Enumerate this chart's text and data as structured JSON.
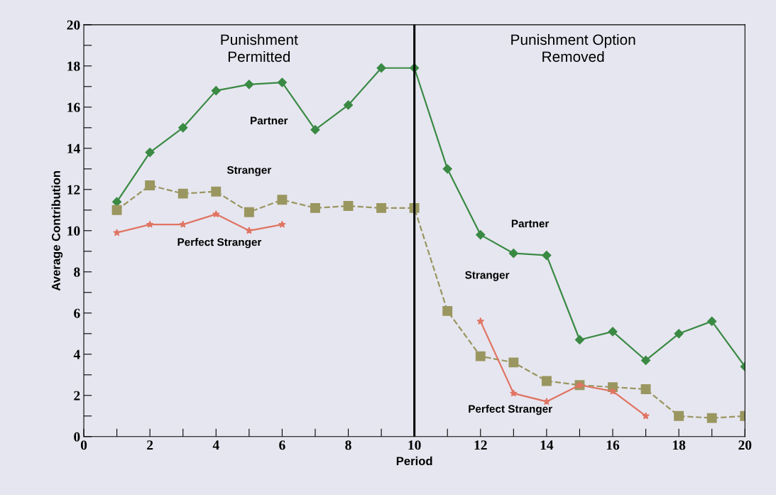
{
  "chart_data": {
    "type": "line",
    "xlabel": "Period",
    "ylabel": "Average Contribution",
    "xlim": [
      0,
      20
    ],
    "ylim": [
      0,
      20
    ],
    "xticks": [
      0,
      {
        "value": 1,
        "label": null
      },
      2,
      {
        "value": 3,
        "label": null
      },
      4,
      {
        "value": 5,
        "label": null
      },
      6,
      {
        "value": 7,
        "label": null
      },
      8,
      {
        "value": 9,
        "label": null
      },
      10,
      {
        "value": 11,
        "label": null
      },
      12,
      {
        "value": 13,
        "label": null
      },
      14,
      {
        "value": 15,
        "label": null
      },
      16,
      {
        "value": 17,
        "label": null
      },
      18,
      {
        "value": 19,
        "label": null
      },
      20
    ],
    "yticks": [
      0,
      {
        "value": 1,
        "label": null
      },
      2,
      {
        "value": 3,
        "label": null
      },
      4,
      {
        "value": 5,
        "label": null
      },
      6,
      {
        "value": 7,
        "label": null
      },
      8,
      {
        "value": 9,
        "label": null
      },
      10,
      {
        "value": 11,
        "label": null
      },
      12,
      {
        "value": 13,
        "label": null
      },
      14,
      {
        "value": 15,
        "label": null
      },
      16,
      {
        "value": 17,
        "label": null
      },
      18,
      {
        "value": 19,
        "label": null
      },
      20
    ],
    "grid": false,
    "legend": false,
    "series": [
      {
        "name": "Partner",
        "color": "#3a8a44",
        "marker": "diamond",
        "line_style": "solid",
        "x": [
          1,
          2,
          3,
          4,
          5,
          6,
          7,
          8,
          9,
          10,
          11,
          12,
          13,
          14,
          15,
          16,
          17,
          18,
          19,
          20
        ],
        "values": [
          11.4,
          13.8,
          15.0,
          16.8,
          17.1,
          17.2,
          14.9,
          16.1,
          17.9,
          17.9,
          13.0,
          9.8,
          8.9,
          8.8,
          4.7,
          5.1,
          3.7,
          5.0,
          5.6,
          3.4
        ]
      },
      {
        "name": "Stranger",
        "color": "#9a9660",
        "marker": "square",
        "line_style": "dashed",
        "x": [
          1,
          2,
          3,
          4,
          5,
          6,
          7,
          8,
          9,
          10,
          11,
          12,
          13,
          14,
          15,
          16,
          17,
          18,
          19,
          20
        ],
        "values": [
          11.0,
          12.2,
          11.8,
          11.9,
          10.9,
          11.5,
          11.1,
          11.2,
          11.1,
          11.1,
          6.1,
          3.9,
          3.6,
          2.7,
          2.5,
          2.4,
          2.3,
          1.0,
          0.9,
          1.0
        ]
      },
      {
        "name": "Perfect Stranger",
        "color": "#e07462",
        "marker": "star",
        "line_style": "solid",
        "x": [
          1,
          2,
          3,
          4,
          5,
          6,
          7,
          8,
          9,
          10,
          11,
          12,
          13,
          14,
          15,
          16,
          17
        ],
        "values": [
          9.9,
          10.3,
          10.3,
          10.8,
          10.0,
          10.3,
          null,
          null,
          null,
          null,
          null,
          5.6,
          2.1,
          1.7,
          2.5,
          2.2,
          1.0
        ]
      }
    ],
    "ref_lines": [
      {
        "axis": "x",
        "value": 10,
        "color": "#000000",
        "line_style": "solid"
      }
    ],
    "annotations": [
      "Punishment\nPermitted",
      "Punishment Option\nRemoved"
    ]
  }
}
